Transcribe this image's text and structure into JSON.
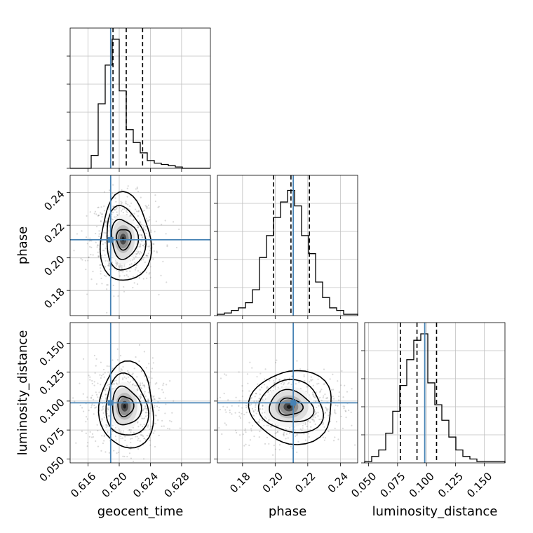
{
  "chart_data": {
    "type": "corner",
    "parameters": [
      "geocent_time",
      "phase",
      "luminosity_distance"
    ],
    "truths": [
      0.6189,
      0.2111,
      0.0985
    ],
    "ranges": [
      [
        0.6137,
        0.6317
      ],
      [
        0.1646,
        0.2506
      ],
      [
        0.0466,
        0.1678
      ]
    ],
    "ticks": [
      [
        "0.616",
        "0.620",
        "0.624",
        "0.628"
      ],
      [
        "0.18",
        "0.20",
        "0.22",
        "0.24"
      ],
      [
        "0.050",
        "0.075",
        "0.100",
        "0.125",
        "0.150"
      ]
    ],
    "quantile_lines": [
      [
        0.6192,
        0.6209,
        0.623
      ],
      [
        0.199,
        0.2097,
        0.221
      ],
      [
        0.0775,
        0.0918,
        0.1087
      ]
    ],
    "histograms": [
      [
        0,
        0,
        0,
        0.1,
        0.5,
        0.8,
        1.0,
        0.6,
        0.3,
        0.2,
        0.12,
        0.06,
        0.04,
        0.03,
        0.02,
        0.01,
        0,
        0,
        0,
        0
      ],
      [
        0.01,
        0.02,
        0.04,
        0.06,
        0.1,
        0.2,
        0.45,
        0.62,
        0.76,
        0.88,
        0.97,
        0.85,
        0.62,
        0.48,
        0.26,
        0.14,
        0.06,
        0.04,
        0.01,
        0.01
      ],
      [
        0.01,
        0.05,
        0.1,
        0.23,
        0.4,
        0.6,
        0.8,
        0.95,
        1.0,
        0.62,
        0.45,
        0.33,
        0.2,
        0.1,
        0.05,
        0.03,
        0.01,
        0.01,
        0.01,
        0.01
      ]
    ],
    "contours": [
      {
        "x": "geocent_time",
        "y": "phase",
        "center": [
          0.6205,
          0.2115
        ],
        "spread": [
          0.0012,
          0.0095
        ],
        "levels": [
          0.7,
          1.3,
          2.0,
          2.7
        ]
      },
      {
        "x": "geocent_time",
        "y": "luminosity_distance",
        "center": [
          0.6207,
          0.0955
        ],
        "spread": [
          0.0013,
          0.013
        ],
        "levels": [
          0.7,
          1.3,
          2.0,
          2.7
        ]
      },
      {
        "x": "phase",
        "y": "luminosity_distance",
        "center": [
          0.2085,
          0.095
        ],
        "spread": [
          0.0095,
          0.011
        ],
        "levels": [
          0.7,
          1.3,
          2.0,
          2.7
        ]
      }
    ],
    "colors": {
      "truth": "#4682b4",
      "line": "#000000",
      "grid": "#bfbfbf",
      "scatter": "#808080"
    },
    "grid": true
  }
}
